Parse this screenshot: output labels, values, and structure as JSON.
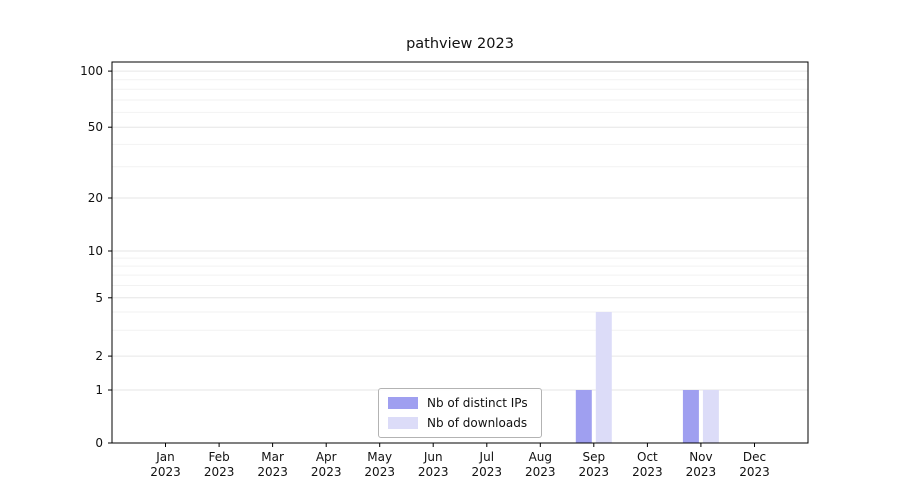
{
  "chart_data": {
    "type": "bar",
    "title": "pathview 2023",
    "categories": [
      "Jan",
      "Feb",
      "Mar",
      "Apr",
      "May",
      "Jun",
      "Jul",
      "Aug",
      "Sep",
      "Oct",
      "Nov",
      "Dec"
    ],
    "x_sublabel": "2023",
    "series": [
      {
        "name": "Nb of distinct IPs",
        "color": "#9f9ff0",
        "values": [
          0,
          0,
          0,
          0,
          0,
          0,
          0,
          0,
          1,
          0,
          1,
          0
        ]
      },
      {
        "name": "Nb of downloads",
        "color": "#dcdcf8",
        "values": [
          0,
          0,
          0,
          0,
          0,
          0,
          0,
          0,
          4,
          0,
          1,
          0
        ]
      }
    ],
    "yticks": [
      0,
      1,
      2,
      5,
      10,
      20,
      50,
      100
    ],
    "ylim": [
      0,
      105
    ],
    "yscale": "symlog",
    "xlabel": "",
    "ylabel": "",
    "grid": "horizontal",
    "legend_position": "lower-center"
  }
}
